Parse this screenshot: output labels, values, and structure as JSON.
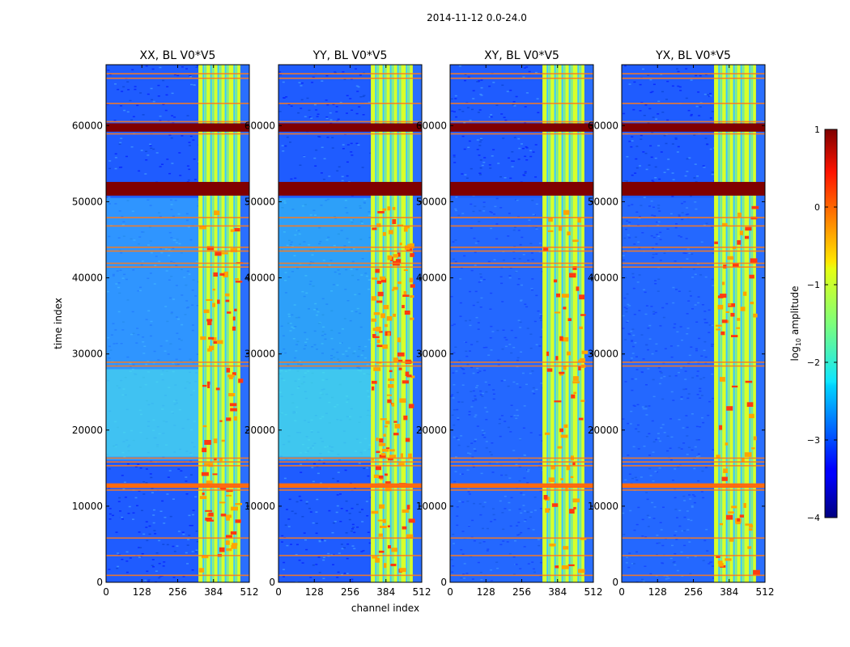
{
  "figure": {
    "suptitle": "2014-11-12 0.0-24.0",
    "ylabel": "time index",
    "xlabel": "channel index"
  },
  "chart_data": {
    "type": "heatmap",
    "title": "2014-11-12 0.0-24.0",
    "xlabel": "channel index",
    "ylabel": "time index",
    "xlim": [
      0,
      512
    ],
    "ylim": [
      0,
      68000
    ],
    "xticks": [
      0,
      128,
      256,
      384,
      512
    ],
    "yticks": [
      0,
      10000,
      20000,
      30000,
      40000,
      50000,
      60000
    ],
    "panels": [
      {
        "title": "XX, BL V0*V5",
        "pol": "XX"
      },
      {
        "title": "YY, BL V0*V5",
        "pol": "YY"
      },
      {
        "title": "XY, BL V0*V5",
        "pol": "XY"
      },
      {
        "title": "YX, BL V0*V5",
        "pol": "YX"
      }
    ],
    "colorbar": {
      "label": "log10 amplitude",
      "label_base": "log",
      "label_sub": "10",
      "label_rest": " amplitude",
      "range": [
        -4,
        1
      ],
      "ticks": [
        -4,
        -3,
        -2,
        -1,
        0,
        1
      ],
      "tick_labels": [
        "−4",
        "−3",
        "−2",
        "−1",
        "0",
        "1"
      ],
      "colormap": "jet"
    },
    "features": {
      "saturated_time_ranges": [
        [
          50800,
          52600
        ],
        [
          59200,
          60300
        ],
        [
          12400,
          13000
        ]
      ],
      "bright_channel_range": [
        330,
        480
      ],
      "flag_lines_time": [
        1000,
        3600,
        5900,
        12200,
        15400,
        15900,
        16400,
        28500,
        29000,
        41500,
        42000,
        43600,
        44100,
        46900,
        48000,
        59000,
        60600,
        63000,
        66300,
        66900
      ]
    }
  }
}
